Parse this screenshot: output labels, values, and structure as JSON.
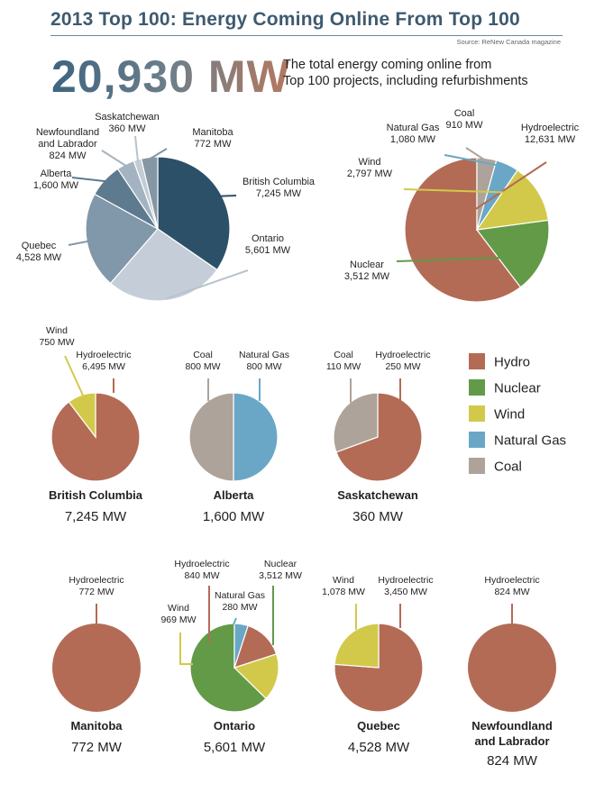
{
  "header": {
    "title": "2013 Top 100: Energy Coming Online From Top 100",
    "source": "Source: ReNew Canada magazine",
    "big_number": "20,930 MW",
    "description_line1": "The total energy coming online from",
    "description_line2": "Top 100 projects, including refurbishments"
  },
  "colors": {
    "hydro": "#b36b55",
    "nuclear": "#629a47",
    "wind": "#d2c94b",
    "natural_gas": "#6aa7c7",
    "coal": "#ada39a",
    "bc": "#2d5069",
    "ontario": "#c5ced8",
    "quebec": "#8197aa",
    "alberta": "#5e7a8e",
    "newfoundland": "#a3b3c1",
    "saskatchewan": "#c3cbd3",
    "manitoba": "#8596a4"
  },
  "legend": {
    "hydro": "Hydro",
    "nuclear": "Nuclear",
    "wind": "Wind",
    "natural_gas": "Natural Gas",
    "coal": "Coal"
  },
  "chart_data": [
    {
      "type": "pie",
      "id": "by-province",
      "slices": [
        {
          "name": "British Columbia",
          "value": 7245,
          "label": "7,245 MW",
          "color_key": "bc"
        },
        {
          "name": "Ontario",
          "value": 5601,
          "label": "5,601 MW",
          "color_key": "ontario"
        },
        {
          "name": "Quebec",
          "value": 4528,
          "label": "4,528 MW",
          "color_key": "quebec"
        },
        {
          "name": "Alberta",
          "value": 1600,
          "label": "1,600 MW",
          "color_key": "alberta"
        },
        {
          "name": "Newfoundland and Labrador",
          "name_line1": "Newfoundland",
          "name_line2": "and Labrador",
          "value": 824,
          "label": "824 MW",
          "color_key": "newfoundland"
        },
        {
          "name": "Saskatchewan",
          "value": 360,
          "label": "360 MW",
          "color_key": "saskatchewan"
        },
        {
          "name": "Manitoba",
          "value": 772,
          "label": "772 MW",
          "color_key": "manitoba"
        }
      ]
    },
    {
      "type": "pie",
      "id": "by-source",
      "slices": [
        {
          "name": "Hydroelectric",
          "value": 12631,
          "label": "12,631 MW",
          "color_key": "hydro"
        },
        {
          "name": "Nuclear",
          "value": 3512,
          "label": "3,512 MW",
          "color_key": "nuclear"
        },
        {
          "name": "Wind",
          "value": 2797,
          "label": "2,797 MW",
          "color_key": "wind"
        },
        {
          "name": "Natural Gas",
          "value": 1080,
          "label": "1,080 MW",
          "color_key": "natural_gas"
        },
        {
          "name": "Coal",
          "value": 910,
          "label": "910 MW",
          "color_key": "coal"
        }
      ]
    },
    {
      "type": "pie",
      "id": "british-columbia",
      "title": "British Columbia",
      "total": "7,245 MW",
      "slices": [
        {
          "name": "Hydroelectric",
          "value": 6495,
          "label": "6,495 MW",
          "color_key": "hydro"
        },
        {
          "name": "Wind",
          "value": 750,
          "label": "750 MW",
          "color_key": "wind"
        }
      ]
    },
    {
      "type": "pie",
      "id": "alberta",
      "title": "Alberta",
      "total": "1,600 MW",
      "slices": [
        {
          "name": "Natural Gas",
          "value": 800,
          "label": "800 MW",
          "color_key": "natural_gas"
        },
        {
          "name": "Coal",
          "value": 800,
          "label": "800 MW",
          "color_key": "coal"
        }
      ]
    },
    {
      "type": "pie",
      "id": "saskatchewan",
      "title": "Saskatchewan",
      "total": "360 MW",
      "slices": [
        {
          "name": "Hydroelectric",
          "value": 250,
          "label": "250 MW",
          "color_key": "hydro"
        },
        {
          "name": "Coal",
          "value": 110,
          "label": "110 MW",
          "color_key": "coal"
        }
      ]
    },
    {
      "type": "pie",
      "id": "manitoba",
      "title": "Manitoba",
      "total": "772 MW",
      "slices": [
        {
          "name": "Hydroelectric",
          "value": 772,
          "label": "772 MW",
          "color_key": "hydro"
        }
      ]
    },
    {
      "type": "pie",
      "id": "ontario",
      "title": "Ontario",
      "total": "5,601 MW",
      "slices": [
        {
          "name": "Nuclear",
          "value": 3512,
          "label": "3,512 MW",
          "color_key": "nuclear"
        },
        {
          "name": "Wind",
          "value": 969,
          "label": "969 MW",
          "color_key": "wind"
        },
        {
          "name": "Hydroelectric",
          "value": 840,
          "label": "840 MW",
          "color_key": "hydro"
        },
        {
          "name": "Natural Gas",
          "value": 280,
          "label": "280 MW",
          "color_key": "natural_gas"
        }
      ]
    },
    {
      "type": "pie",
      "id": "quebec",
      "title": "Quebec",
      "total": "4,528 MW",
      "slices": [
        {
          "name": "Hydroelectric",
          "value": 3450,
          "label": "3,450 MW",
          "color_key": "hydro"
        },
        {
          "name": "Wind",
          "value": 1078,
          "label": "1,078 MW",
          "color_key": "wind"
        }
      ]
    },
    {
      "type": "pie",
      "id": "newfoundland",
      "title": "Newfoundland and Labrador",
      "title_line1": "Newfoundland",
      "title_line2": "and Labrador",
      "total": "824 MW",
      "slices": [
        {
          "name": "Hydroelectric",
          "value": 824,
          "label": "824 MW",
          "color_key": "hydro"
        }
      ]
    }
  ]
}
